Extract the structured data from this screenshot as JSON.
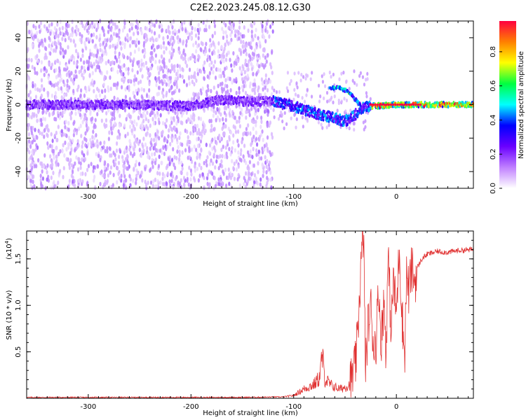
{
  "title": "C2E2.2023.245.08.12.G30",
  "chart_data": [
    {
      "type": "heatmap",
      "xlabel": "Height of straight line (km)",
      "ylabel": "Frequency (Hz)",
      "xlim": [
        -360,
        75
      ],
      "ylim": [
        -50,
        50
      ],
      "xticks": [
        -300,
        -200,
        -100,
        0
      ],
      "yticks": [
        -40,
        -20,
        0,
        20,
        40
      ],
      "colorbar": {
        "label": "Normalized spectral amplitude",
        "range": [
          0,
          1
        ],
        "ticks": [
          "0.0",
          "0.2",
          "0.4",
          "0.6",
          "0.8"
        ],
        "colors": [
          "#ffffff",
          "#c080ff",
          "#6a00ff",
          "#0000ff",
          "#00ffff",
          "#00ff40",
          "#ffff00",
          "#ff8000",
          "#ff0040"
        ]
      },
      "features": {
        "noise_region_x": [
          -360,
          -120
        ],
        "central_band_y": 0,
        "deviation_region_x": [
          -120,
          -25
        ],
        "stable_signal_x": [
          -25,
          75
        ]
      },
      "ridge": [
        {
          "x": -360,
          "y": 0
        },
        {
          "x": -300,
          "y": 0
        },
        {
          "x": -250,
          "y": 0
        },
        {
          "x": -200,
          "y": -1
        },
        {
          "x": -170,
          "y": 3
        },
        {
          "x": -150,
          "y": 2
        },
        {
          "x": -120,
          "y": 2
        },
        {
          "x": -100,
          "y": -1
        },
        {
          "x": -80,
          "y": -5
        },
        {
          "x": -60,
          "y": -8
        },
        {
          "x": -50,
          "y": -10
        },
        {
          "x": -40,
          "y": -6
        },
        {
          "x": -30,
          "y": -1
        },
        {
          "x": -25,
          "y": -1
        },
        {
          "x": 0,
          "y": 0
        },
        {
          "x": 30,
          "y": 0
        },
        {
          "x": 75,
          "y": 0
        }
      ],
      "upper_branch": [
        {
          "x": -65,
          "y": 10
        },
        {
          "x": -55,
          "y": 10
        },
        {
          "x": -45,
          "y": 7
        },
        {
          "x": -40,
          "y": 3
        },
        {
          "x": -35,
          "y": 0
        }
      ]
    },
    {
      "type": "line",
      "xlabel": "Height of straight line (km)",
      "ylabel": "SNR (10 * v/v)",
      "y_multiplier": "(x10",
      "y_multiplier_exp": "4",
      "y_multiplier_close": ")",
      "xlim": [
        -360,
        75
      ],
      "ylim": [
        0,
        1.8
      ],
      "xticks": [
        -300,
        -200,
        -100,
        0
      ],
      "yticks": [
        0.5,
        1.0,
        1.5
      ],
      "ytick_labels": [
        "0.5",
        "1.0",
        "1.5"
      ],
      "line_color": "#e03030",
      "series": [
        {
          "x": [
            -360,
            -300,
            -200,
            -150,
            -110,
            -100,
            -90,
            -80,
            -75,
            -72,
            -70,
            -65,
            -60,
            -55,
            -50,
            -45,
            -40,
            -38,
            -36,
            -34,
            -32,
            -30,
            -28,
            -26,
            -25,
            -22,
            -20,
            -17,
            -15,
            -12,
            -10,
            -8,
            -5,
            -3,
            0,
            3,
            5,
            8,
            10,
            12,
            15,
            18,
            20,
            25,
            30,
            40,
            50,
            60,
            75
          ],
          "y": [
            0.01,
            0.01,
            0.01,
            0.01,
            0.015,
            0.03,
            0.1,
            0.15,
            0.22,
            0.45,
            0.22,
            0.15,
            0.12,
            0.1,
            0.12,
            0.15,
            0.35,
            0.6,
            1.1,
            1.5,
            1.8,
            0.3,
            0.75,
            0.9,
            1.0,
            0.55,
            0.6,
            1.2,
            0.6,
            1.05,
            0.5,
            1.55,
            0.7,
            1.3,
            0.9,
            1.65,
            1.0,
            0.45,
            1.35,
            1.15,
            1.4,
            1.25,
            1.4,
            1.5,
            1.55,
            1.58,
            1.57,
            1.59,
            1.6
          ]
        }
      ]
    }
  ]
}
